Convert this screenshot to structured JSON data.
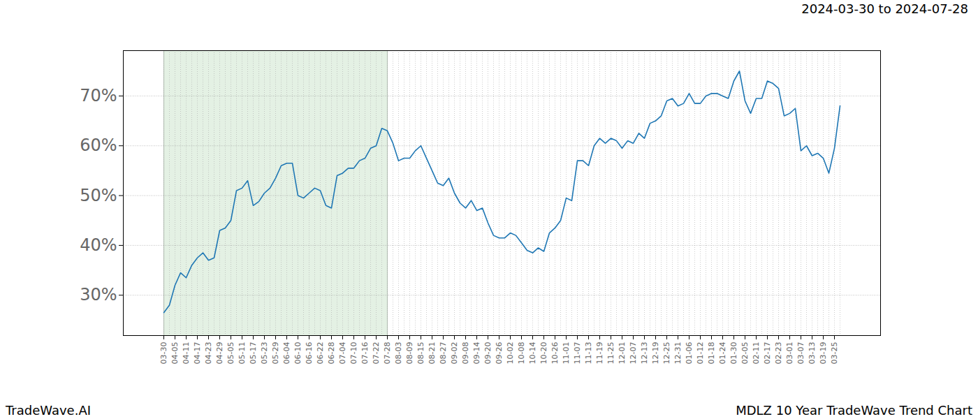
{
  "chart_data": {
    "type": "line",
    "subtitle": "2024-03-30 to 2024-07-28",
    "source": "TradeWave.AI",
    "title": "MDLZ 10 Year TradeWave Trend Chart",
    "categories": [
      "03-30",
      null,
      "04-05",
      null,
      "04-11",
      null,
      "04-17",
      null,
      "04-23",
      null,
      "04-29",
      null,
      "05-05",
      null,
      "05-11",
      null,
      "05-17",
      null,
      "05-23",
      null,
      "05-29",
      null,
      "06-04",
      null,
      "06-10",
      null,
      "06-16",
      null,
      "06-22",
      null,
      "06-28",
      null,
      "07-04",
      null,
      "07-10",
      null,
      "07-16",
      null,
      "07-22",
      null,
      "07-28",
      null,
      "08-03",
      null,
      "08-09",
      null,
      "08-15",
      null,
      "08-21",
      null,
      "08-27",
      null,
      "09-02",
      null,
      "09-08",
      null,
      "09-14",
      null,
      "09-20",
      null,
      "09-26",
      null,
      "10-02",
      null,
      "10-08",
      null,
      "10-14",
      null,
      "10-20",
      null,
      "10-26",
      null,
      "11-01",
      null,
      "11-07",
      null,
      "11-13",
      null,
      "11-19",
      null,
      "11-25",
      null,
      "12-01",
      null,
      "12-07",
      null,
      "12-13",
      null,
      "12-19",
      null,
      "12-25",
      null,
      "12-31",
      null,
      "01-06",
      null,
      "01-12",
      null,
      "01-18",
      null,
      "01-24",
      null,
      "01-30",
      null,
      "02-05",
      null,
      "02-11",
      null,
      "02-17",
      null,
      "02-23",
      null,
      "03-01",
      null,
      "03-07",
      null,
      "03-13",
      null,
      "03-19",
      null,
      "03-25",
      null
    ],
    "values": [
      26.5,
      28,
      32,
      34.5,
      33.5,
      36,
      37.5,
      38.5,
      37,
      37.5,
      43,
      43.5,
      45,
      51,
      51.5,
      53,
      48,
      48.8,
      50.5,
      51.5,
      53.5,
      56,
      56.5,
      56.5,
      50,
      49.5,
      50.5,
      51.5,
      51,
      48,
      47.5,
      54,
      54.5,
      55.5,
      55.5,
      57,
      57.5,
      59.5,
      60,
      63.5,
      63,
      60.5,
      57,
      57.5,
      57.5,
      59,
      60,
      57.5,
      55,
      52.5,
      52,
      53.5,
      50.5,
      48.5,
      47.5,
      49,
      47,
      47.5,
      44.5,
      42,
      41.5,
      41.5,
      42.5,
      42,
      40.5,
      39,
      38.5,
      39.5,
      38.8,
      42.5,
      43.5,
      45,
      49.5,
      49,
      57,
      57,
      56,
      60,
      61.5,
      60.5,
      61.5,
      61,
      59.5,
      61,
      60.5,
      62.5,
      61.5,
      64.5,
      65,
      66,
      69,
      69.5,
      68,
      68.5,
      70.5,
      68.5,
      68.5,
      70,
      70.5,
      70.5,
      70,
      69.5,
      73,
      75,
      69,
      66.5,
      69.5,
      69.5,
      73,
      72.5,
      71.5,
      66,
      66.5,
      67.5,
      59,
      60,
      58,
      58.5,
      57.5,
      54.5,
      59.5,
      68
    ],
    "color": "#1f77b4",
    "shaded_range": [
      "03-30",
      "07-28"
    ],
    "ylim": [
      21.9,
      79.1
    ],
    "yticks": [
      {
        "value": 30,
        "label": "30%"
      },
      {
        "value": 40,
        "label": "40%"
      },
      {
        "value": 50,
        "label": "50%"
      },
      {
        "value": 60,
        "label": "60%"
      },
      {
        "value": 70,
        "label": "70%"
      }
    ],
    "grid": true
  }
}
